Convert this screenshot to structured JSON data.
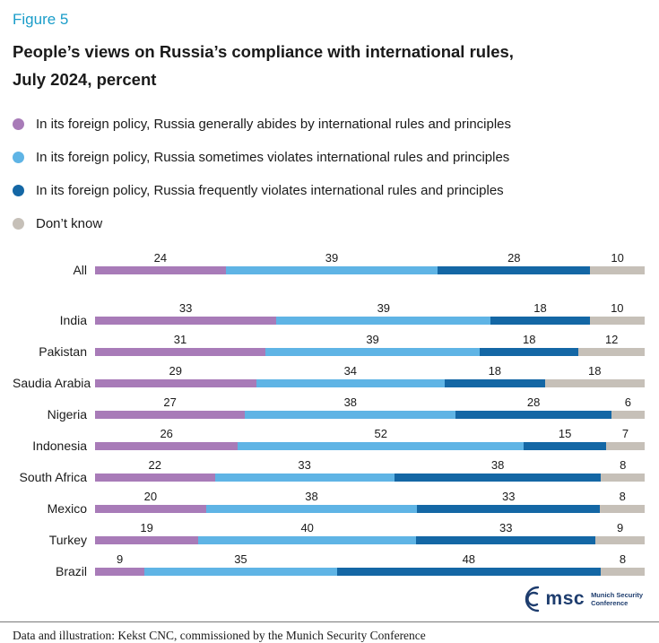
{
  "figure_label": "Figure 5",
  "title_line1": "People’s views on Russia’s compliance with international rules,",
  "title_line2": "July 2024, percent",
  "legend": [
    {
      "label": "In its foreign policy, Russia generally abides by international rules and principles",
      "color": "#a87bb8"
    },
    {
      "label": "In its foreign policy, Russia sometimes violates international rules and principles",
      "color": "#5fb4e5"
    },
    {
      "label": "In its foreign policy, Russia frequently violates international rules and principles",
      "color": "#1467a5"
    },
    {
      "label": "Don’t know",
      "color": "#c6c0b8"
    }
  ],
  "chart_data": {
    "type": "bar",
    "orientation": "horizontal",
    "stacked": true,
    "title": "People’s views on Russia’s compliance with international rules, July 2024, percent",
    "xlabel": "",
    "ylabel": "",
    "xlim": [
      0,
      100
    ],
    "grid": false,
    "legend_position": "top",
    "categories": [
      "All",
      "India",
      "Pakistan",
      "Saudia Arabia",
      "Nigeria",
      "Indonesia",
      "South Africa",
      "Mexico",
      "Turkey",
      "Brazil"
    ],
    "series": [
      {
        "name": "In its foreign policy, Russia generally abides by international rules and principles",
        "color": "#a87bb8",
        "values": [
          24,
          33,
          31,
          29,
          27,
          26,
          22,
          20,
          19,
          9
        ]
      },
      {
        "name": "In its foreign policy, Russia sometimes violates international rules and principles",
        "color": "#5fb4e5",
        "values": [
          39,
          39,
          39,
          34,
          38,
          52,
          33,
          38,
          40,
          35
        ]
      },
      {
        "name": "In its foreign policy, Russia frequently violates international rules and principles",
        "color": "#1467a5",
        "values": [
          28,
          18,
          18,
          18,
          28,
          15,
          38,
          33,
          33,
          48
        ]
      },
      {
        "name": "Don’t know",
        "color": "#c6c0b8",
        "values": [
          10,
          10,
          12,
          18,
          6,
          7,
          8,
          8,
          9,
          8
        ]
      }
    ]
  },
  "footer": "Data and illustration: Kekst CNC, commissioned by the Munich Security Conference",
  "logo": {
    "text": "msc",
    "sub1": "Munich Security",
    "sub2": "Conference"
  }
}
